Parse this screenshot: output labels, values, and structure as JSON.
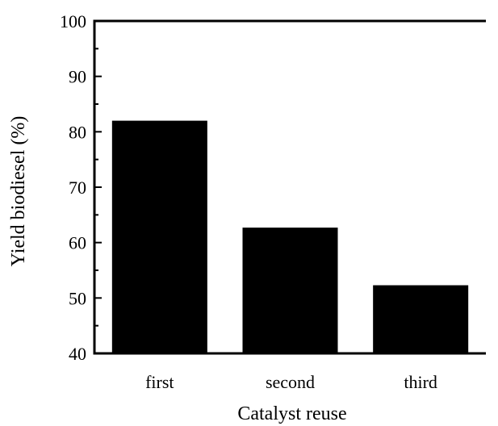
{
  "chart_data": {
    "type": "bar",
    "title": "",
    "xlabel": "Catalyst reuse",
    "ylabel": "Yield biodiesel (%)",
    "categories": [
      "first",
      "second",
      "third"
    ],
    "values": [
      82,
      62.7,
      52.3
    ],
    "ylim": [
      40,
      100
    ],
    "yticks": [
      "40",
      "50",
      "60",
      "70",
      "80",
      "90",
      "100"
    ],
    "grid": false,
    "legend": "none",
    "colors": {
      "bar": "#000000",
      "axis": "#000000",
      "background": "#ffffff"
    }
  }
}
